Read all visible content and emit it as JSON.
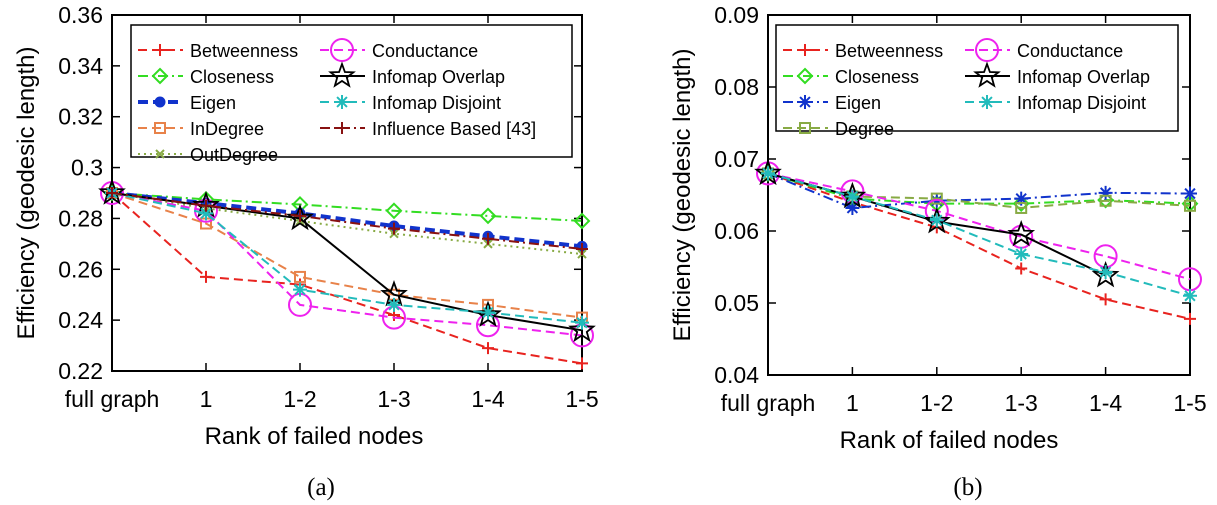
{
  "figure": {
    "captions": [
      "(a)",
      "(b)"
    ]
  },
  "chart_data": [
    {
      "type": "line",
      "categories": [
        "full graph",
        "1",
        "1-2",
        "1-3",
        "1-4",
        "1-5"
      ],
      "xlabel": "Rank of failed nodes",
      "ylabel": "Efficiency (geodesic length)",
      "ylim": [
        0.22,
        0.36
      ],
      "yticks": [
        "0.22",
        "0.24",
        "0.26",
        "0.28",
        "0.3",
        "0.32",
        "0.34",
        "0.36"
      ],
      "legend_position": "top",
      "grid": false,
      "series": [
        {
          "name": "Betweenness",
          "color": "#e8231f",
          "dash": "dash",
          "marker": "plus",
          "values": [
            0.29,
            0.257,
            0.254,
            0.242,
            0.229,
            0.223
          ]
        },
        {
          "name": "Closeness",
          "color": "#33dd22",
          "dash": "dashdot",
          "marker": "diamond",
          "values": [
            0.29,
            0.2875,
            0.2855,
            0.283,
            0.281,
            0.279
          ]
        },
        {
          "name": "Eigen",
          "color": "#1133cc",
          "dash": "dashthick",
          "marker": "circlefill",
          "values": [
            0.29,
            0.286,
            0.282,
            0.277,
            0.273,
            0.269
          ]
        },
        {
          "name": "InDegree",
          "color": "#e8824a",
          "dash": "dash",
          "marker": "square",
          "values": [
            0.29,
            0.278,
            0.257,
            0.25,
            0.246,
            0.241
          ]
        },
        {
          "name": "OutDegree",
          "color": "#88aa44",
          "dash": "dot",
          "marker": "x",
          "values": [
            0.29,
            0.284,
            0.279,
            0.274,
            0.27,
            0.266
          ]
        },
        {
          "name": "Conductance",
          "color": "#ee22ee",
          "dash": "dash",
          "marker": "circlebig",
          "values": [
            0.29,
            0.283,
            0.246,
            0.241,
            0.238,
            0.234
          ]
        },
        {
          "name": "Infomap Overlap",
          "color": "#000000",
          "dash": "solid",
          "marker": "star",
          "values": [
            0.29,
            0.285,
            0.28,
            0.25,
            0.242,
            0.236
          ]
        },
        {
          "name": "Infomap Disjoint",
          "color": "#22bbbb",
          "dash": "dash",
          "marker": "asterisk",
          "values": [
            0.29,
            0.282,
            0.252,
            0.246,
            0.243,
            0.239
          ]
        },
        {
          "name": "Influence Based [43]",
          "color": "#881111",
          "dash": "dashdot",
          "marker": "plus",
          "values": [
            0.29,
            0.285,
            0.281,
            0.276,
            0.272,
            0.268
          ]
        }
      ]
    },
    {
      "type": "line",
      "categories": [
        "full graph",
        "1",
        "1-2",
        "1-3",
        "1-4",
        "1-5"
      ],
      "xlabel": "Rank of failed nodes",
      "ylabel": "Efficiency (geodesic length)",
      "ylim": [
        0.04,
        0.09
      ],
      "yticks": [
        "0.04",
        "0.05",
        "0.06",
        "0.07",
        "0.08",
        "0.09"
      ],
      "legend_position": "top",
      "grid": false,
      "series": [
        {
          "name": "Betweenness",
          "color": "#e8231f",
          "dash": "dash",
          "marker": "plus",
          "values": [
            0.068,
            0.064,
            0.0605,
            0.0548,
            0.0505,
            0.0478
          ]
        },
        {
          "name": "Closeness",
          "color": "#33dd22",
          "dash": "dashdot",
          "marker": "diamond",
          "values": [
            0.068,
            0.0645,
            0.0638,
            0.0638,
            0.0643,
            0.0638
          ]
        },
        {
          "name": "Eigen",
          "color": "#1133cc",
          "dash": "dashdot",
          "marker": "asterisk",
          "values": [
            0.068,
            0.0632,
            0.0642,
            0.0645,
            0.0653,
            0.0652
          ]
        },
        {
          "name": "Degree",
          "color": "#88aa44",
          "dash": "dash",
          "marker": "square",
          "values": [
            0.068,
            0.0648,
            0.0645,
            0.0632,
            0.0642,
            0.0635
          ]
        },
        {
          "name": "Conductance",
          "color": "#ee22ee",
          "dash": "dash",
          "marker": "circlebig",
          "values": [
            0.068,
            0.0655,
            0.0628,
            0.0592,
            0.0565,
            0.0533
          ]
        },
        {
          "name": "Infomap Overlap",
          "color": "#000000",
          "dash": "solid",
          "marker": "star",
          "values": [
            0.068,
            0.0648,
            0.0613,
            0.0595,
            0.0538,
            null
          ]
        },
        {
          "name": "Infomap Disjoint",
          "color": "#22bbbb",
          "dash": "dash",
          "marker": "asterisk",
          "values": [
            0.068,
            0.0648,
            0.0615,
            0.0568,
            0.0543,
            0.051
          ]
        }
      ]
    }
  ]
}
